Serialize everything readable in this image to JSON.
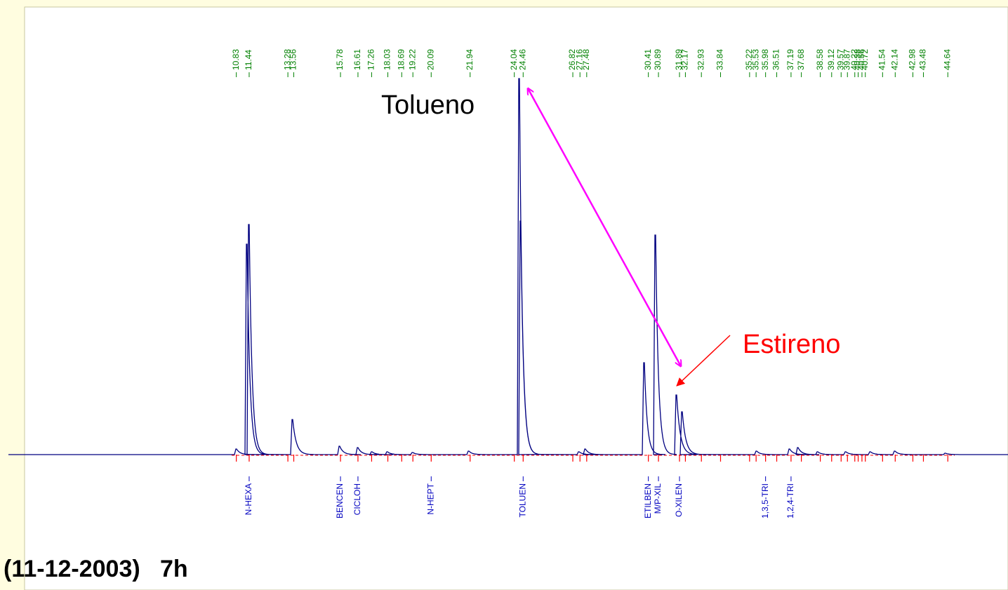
{
  "chart_data": {
    "type": "chromatogram",
    "peaks": [
      10.83,
      11.44,
      13.28,
      13.56,
      15.78,
      16.61,
      17.26,
      18.03,
      18.69,
      19.22,
      20.09,
      21.94,
      24.04,
      24.46,
      26.82,
      27.16,
      27.48,
      30.41,
      30.89,
      31.89,
      32.17,
      32.93,
      33.84,
      35.22,
      35.53,
      35.98,
      36.51,
      37.19,
      37.68,
      38.58,
      39.12,
      39.57,
      39.87,
      40.22,
      40.38,
      40.56,
      40.72,
      41.54,
      42.14,
      42.98,
      43.48,
      44.64
    ],
    "peak_names": [
      null,
      "N-HEXA",
      null,
      null,
      "BENCEN",
      "CICLOH",
      null,
      null,
      null,
      null,
      "N-HEPT",
      null,
      null,
      "TOLUEN",
      null,
      null,
      null,
      "ETILBEN",
      "M/P-XIL",
      "O-XILEN",
      null,
      null,
      null,
      null,
      null,
      "1,3,5-TRI",
      null,
      "1,2,4-TRI",
      null,
      null,
      null,
      null,
      null,
      null,
      null,
      null,
      null,
      null,
      null,
      null,
      null,
      null
    ],
    "xlim": [
      0,
      47.5
    ],
    "annotations": [
      "Tolueno",
      "Estireno"
    ],
    "caption": "(11-12-2003)   7h"
  }
}
